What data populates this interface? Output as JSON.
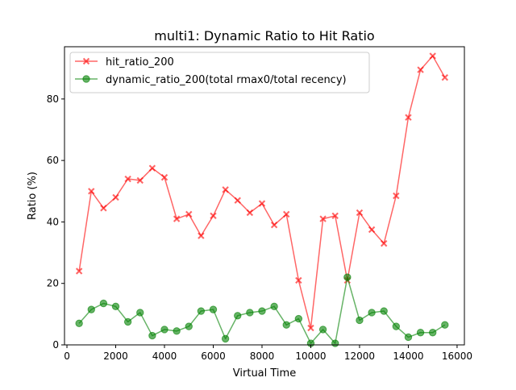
{
  "chart_data": {
    "type": "line",
    "title": "multi1: Dynamic Ratio to Hit Ratio",
    "xlabel": "Virtual Time",
    "ylabel": "Ratio (%)",
    "xlim": [
      -100,
      16300
    ],
    "ylim": [
      0,
      97
    ],
    "x_ticks": [
      0,
      2000,
      4000,
      6000,
      8000,
      10000,
      12000,
      14000,
      16000
    ],
    "y_ticks": [
      0,
      20,
      40,
      60,
      80
    ],
    "grid": false,
    "legend_position": "upper-left",
    "series": [
      {
        "name": "hit_ratio_200",
        "color": "#ff0000",
        "marker": "x-filled",
        "x": [
          500,
          1000,
          1500,
          2000,
          2500,
          3000,
          3500,
          4000,
          4500,
          5000,
          5500,
          6000,
          6500,
          7000,
          7500,
          8000,
          8500,
          9000,
          9500,
          10000,
          10500,
          11000,
          11500,
          12000,
          12500,
          13000,
          13500,
          14000,
          14500,
          15000,
          15500
        ],
        "values": [
          24,
          50,
          44.5,
          48,
          54,
          53.5,
          57.5,
          54.5,
          41,
          42.5,
          35.5,
          42,
          50.5,
          47,
          43,
          46,
          39,
          42.5,
          21,
          5.5,
          41,
          42,
          21,
          43,
          37.5,
          33,
          48.5,
          74,
          89.5,
          94,
          87
        ]
      },
      {
        "name": "dynamic_ratio_200(total rmax0/total recency)",
        "color": "#008000",
        "marker": "circle",
        "x": [
          500,
          1000,
          1500,
          2000,
          2500,
          3000,
          3500,
          4000,
          4500,
          5000,
          5500,
          6000,
          6500,
          7000,
          7500,
          8000,
          8500,
          9000,
          9500,
          10000,
          10500,
          11000,
          11500,
          12000,
          12500,
          13000,
          13500,
          14000,
          14500,
          15000,
          15500
        ],
        "values": [
          7,
          11.5,
          13.5,
          12.5,
          7.5,
          10.5,
          3,
          5,
          4.5,
          6,
          11,
          11.5,
          2,
          9.5,
          10.5,
          11,
          12.5,
          6.5,
          8.5,
          0.5,
          5,
          0.5,
          22,
          8,
          10.5,
          11,
          6,
          2.5,
          4,
          4,
          6.5
        ]
      }
    ]
  }
}
